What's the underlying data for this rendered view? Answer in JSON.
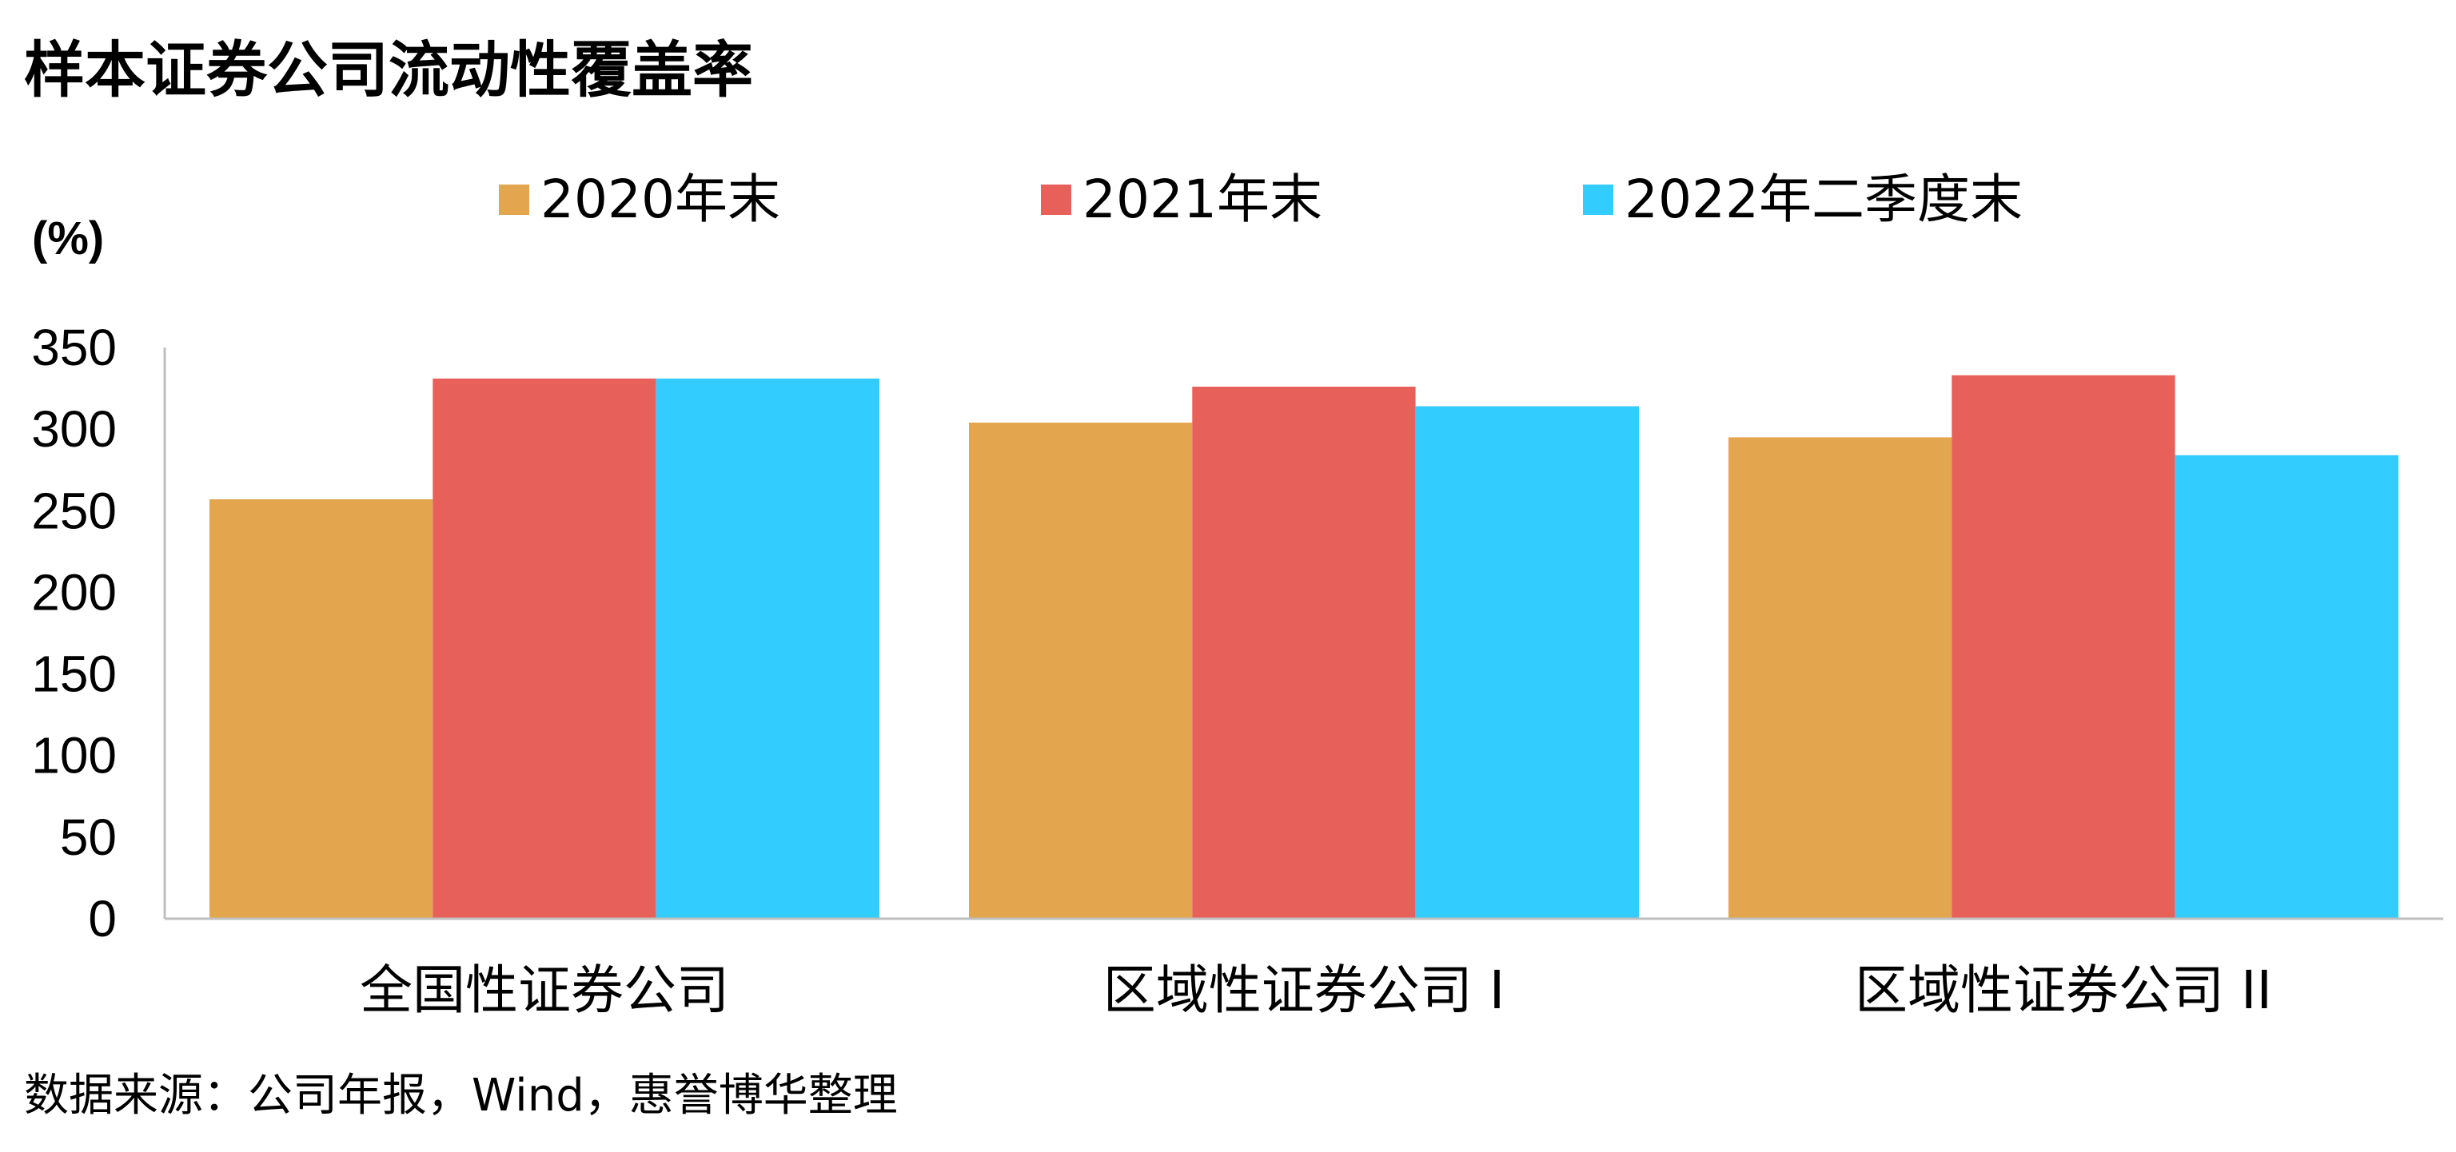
{
  "chart_data": {
    "type": "bar",
    "title": "样本证券公司流动性覆盖率",
    "ylabel": "(%)",
    "categories": [
      "全国性证券公司",
      "区域性证券公司 I",
      "区域性证券公司 II"
    ],
    "series": [
      {
        "name": "2020年末",
        "color": "#E4A54F",
        "values": [
          257,
          304,
          295
        ]
      },
      {
        "name": "2021年末",
        "color": "#E8605A",
        "values": [
          331,
          326,
          333
        ]
      },
      {
        "name": "2022年二季度末",
        "color": "#33CCFF",
        "values": [
          331,
          314,
          284
        ]
      }
    ],
    "yticks": [
      "0",
      "50",
      "100",
      "150",
      "200",
      "250",
      "300",
      "350"
    ],
    "ylim": [
      0,
      350
    ],
    "grid": false,
    "legend": "top"
  },
  "source": "数据来源：公司年报，Wind，惠誉博华整理"
}
